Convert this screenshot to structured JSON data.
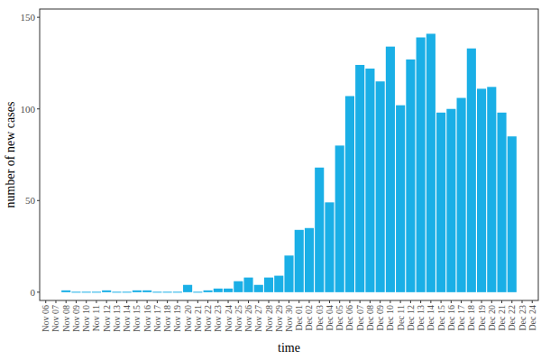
{
  "chart_data": {
    "type": "bar",
    "x_label": "time",
    "y_label": "number of new cases",
    "categories": [
      "Nov 06",
      "Nov 07",
      "Nov 08",
      "Nov 09",
      "Nov 10",
      "Nov 11",
      "Nov 12",
      "Nov 13",
      "Nov 14",
      "Nov 15",
      "Nov 16",
      "Nov 17",
      "Nov 18",
      "Nov 19",
      "Nov 20",
      "Nov 21",
      "Nov 22",
      "Nov 23",
      "Nov 24",
      "Nov 25",
      "Nov 26",
      "Nov 27",
      "Nov 28",
      "Nov 29",
      "Nov 30",
      "Dec 01",
      "Dec 02",
      "Dec 03",
      "Dec 04",
      "Dec 05",
      "Dec 06",
      "Dec 07",
      "Dec 08",
      "Dec 09",
      "Dec 10",
      "Dec 11",
      "Dec 12",
      "Dec 13",
      "Dec 14",
      "Dec 15",
      "Dec 16",
      "Dec 17",
      "Dec 18",
      "Dec 19",
      "Dec 20",
      "Dec 21",
      "Dec 22",
      "Dec 23",
      "Dec 24"
    ],
    "values": [
      null,
      null,
      1,
      0,
      0,
      0,
      1,
      0,
      0,
      1,
      1,
      0,
      0,
      0,
      4,
      0,
      1,
      2,
      2,
      6,
      8,
      4,
      8,
      9,
      20,
      34,
      35,
      68,
      49,
      80,
      107,
      124,
      122,
      115,
      134,
      102,
      127,
      139,
      141,
      98,
      100,
      106,
      133,
      111,
      112,
      98,
      85,
      null,
      null
    ],
    "color": "#1aafe6",
    "ylim": [
      -4.5,
      154.5
    ],
    "yticks": [
      0,
      50,
      100,
      150
    ],
    "grid": false
  }
}
